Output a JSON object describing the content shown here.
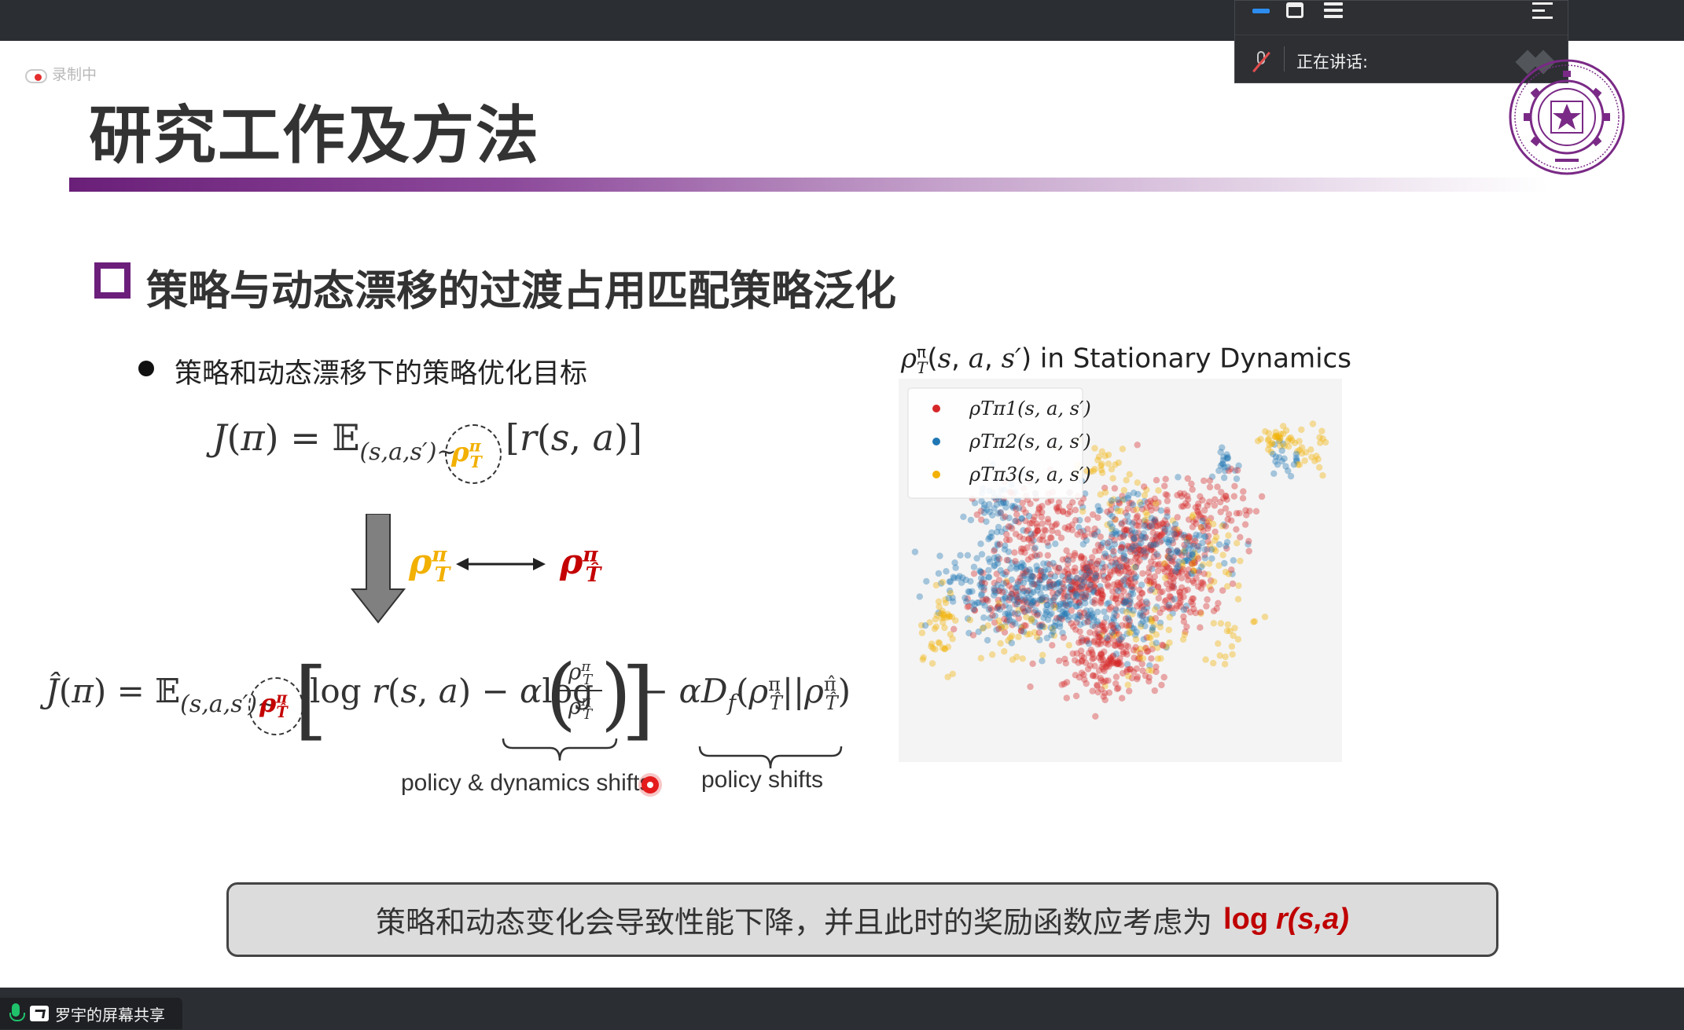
{
  "recording": {
    "label": "录制中"
  },
  "meeting_panel": {
    "speaking_label": "正在讲话:"
  },
  "screen_share": {
    "label": "罗宇的屏幕共享"
  },
  "slide": {
    "title": "研究工作及方法",
    "section_heading": "策略与动态漂移的过渡占用匹配策略泛化",
    "bullet": "策略和动态漂移下的策略优化目标",
    "brace_label_1": "policy & dynamics shifts",
    "brace_label_2": "policy shifts",
    "summary_text": "策略和动态变化会导致性能下降，并且此时的奖励函数应考虑为",
    "summary_log": "log",
    "summary_rsa": "r(s,a)"
  },
  "colors": {
    "accent_purple": "#6b1f7b",
    "red": "#c40000",
    "yellow": "#f2b000",
    "blue": "#2f7fc1"
  },
  "chart_data": {
    "type": "scatter",
    "title": "ρTπ(s, a, s′) in Stationary Dynamics",
    "legend_position": "top-left",
    "legend": [
      "ρTπ1(s, a, s′)",
      "ρTπ2(s, a, s′)",
      "ρTπ3(s, a, s′)"
    ],
    "series_colors": [
      "#d62728",
      "#1f77b4",
      "#f2b100"
    ],
    "x_range": [
      0,
      100
    ],
    "y_range": [
      0,
      100
    ],
    "series": [
      {
        "name": "π1",
        "clusters": [
          [
            44,
            52,
            7,
            5,
            220
          ],
          [
            58,
            40,
            7,
            6,
            180
          ],
          [
            30,
            36,
            6,
            6,
            120
          ],
          [
            47,
            74,
            6,
            6,
            200
          ],
          [
            62,
            55,
            5,
            5,
            110
          ],
          [
            70,
            32,
            5,
            5,
            70
          ],
          [
            24,
            58,
            5,
            5,
            80
          ]
        ]
      },
      {
        "name": "π2",
        "clusters": [
          [
            24,
            54,
            8,
            6,
            200
          ],
          [
            36,
            60,
            6,
            5,
            120
          ],
          [
            52,
            62,
            6,
            6,
            90
          ],
          [
            66,
            44,
            5,
            4,
            70
          ],
          [
            22,
            34,
            3,
            6,
            60
          ],
          [
            75,
            22,
            2,
            2,
            20
          ],
          [
            88,
            20,
            2,
            2,
            20
          ],
          [
            50,
            40,
            6,
            6,
            100
          ]
        ]
      },
      {
        "name": "π3",
        "clusters": [
          [
            8,
            64,
            2,
            7,
            90
          ],
          [
            88,
            14,
            4,
            2,
            70
          ],
          [
            94,
            18,
            2,
            3,
            40
          ],
          [
            70,
            46,
            5,
            5,
            80
          ],
          [
            56,
            68,
            6,
            6,
            90
          ],
          [
            26,
            66,
            5,
            5,
            70
          ],
          [
            46,
            20,
            4,
            2,
            40
          ],
          [
            76,
            68,
            3,
            5,
            40
          ],
          [
            50,
            30,
            5,
            4,
            60
          ]
        ]
      }
    ]
  }
}
